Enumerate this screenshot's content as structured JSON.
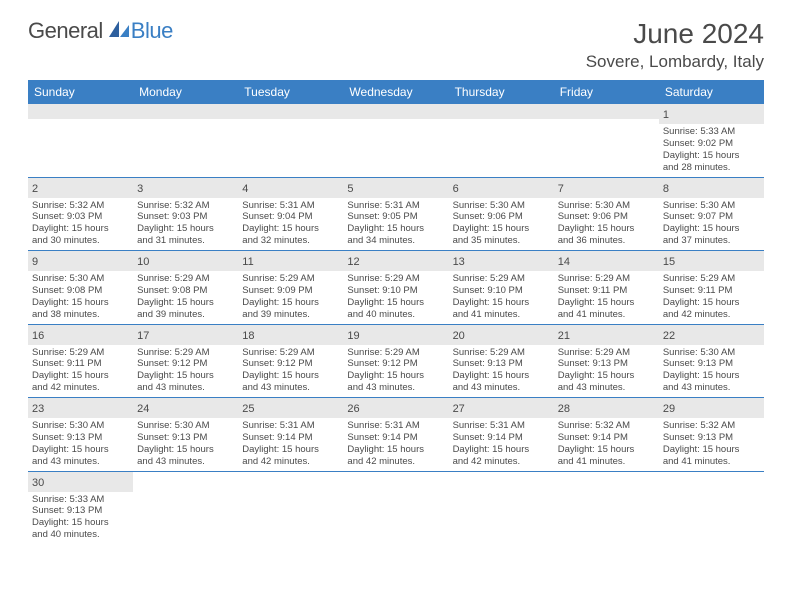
{
  "logo": {
    "text1": "General",
    "text2": "Blue"
  },
  "title": "June 2024",
  "location": "Sovere, Lombardy, Italy",
  "colors": {
    "accent": "#3a7fc4",
    "text": "#4a4a4a",
    "grayBand": "#e8e8e8",
    "background": "#ffffff"
  },
  "weekdays": [
    "Sunday",
    "Monday",
    "Tuesday",
    "Wednesday",
    "Thursday",
    "Friday",
    "Saturday"
  ],
  "weeks": [
    [
      null,
      null,
      null,
      null,
      null,
      null,
      {
        "n": "1",
        "sr": "Sunrise: 5:33 AM",
        "ss": "Sunset: 9:02 PM",
        "d1": "Daylight: 15 hours",
        "d2": "and 28 minutes."
      }
    ],
    [
      {
        "n": "2",
        "sr": "Sunrise: 5:32 AM",
        "ss": "Sunset: 9:03 PM",
        "d1": "Daylight: 15 hours",
        "d2": "and 30 minutes."
      },
      {
        "n": "3",
        "sr": "Sunrise: 5:32 AM",
        "ss": "Sunset: 9:03 PM",
        "d1": "Daylight: 15 hours",
        "d2": "and 31 minutes."
      },
      {
        "n": "4",
        "sr": "Sunrise: 5:31 AM",
        "ss": "Sunset: 9:04 PM",
        "d1": "Daylight: 15 hours",
        "d2": "and 32 minutes."
      },
      {
        "n": "5",
        "sr": "Sunrise: 5:31 AM",
        "ss": "Sunset: 9:05 PM",
        "d1": "Daylight: 15 hours",
        "d2": "and 34 minutes."
      },
      {
        "n": "6",
        "sr": "Sunrise: 5:30 AM",
        "ss": "Sunset: 9:06 PM",
        "d1": "Daylight: 15 hours",
        "d2": "and 35 minutes."
      },
      {
        "n": "7",
        "sr": "Sunrise: 5:30 AM",
        "ss": "Sunset: 9:06 PM",
        "d1": "Daylight: 15 hours",
        "d2": "and 36 minutes."
      },
      {
        "n": "8",
        "sr": "Sunrise: 5:30 AM",
        "ss": "Sunset: 9:07 PM",
        "d1": "Daylight: 15 hours",
        "d2": "and 37 minutes."
      }
    ],
    [
      {
        "n": "9",
        "sr": "Sunrise: 5:30 AM",
        "ss": "Sunset: 9:08 PM",
        "d1": "Daylight: 15 hours",
        "d2": "and 38 minutes."
      },
      {
        "n": "10",
        "sr": "Sunrise: 5:29 AM",
        "ss": "Sunset: 9:08 PM",
        "d1": "Daylight: 15 hours",
        "d2": "and 39 minutes."
      },
      {
        "n": "11",
        "sr": "Sunrise: 5:29 AM",
        "ss": "Sunset: 9:09 PM",
        "d1": "Daylight: 15 hours",
        "d2": "and 39 minutes."
      },
      {
        "n": "12",
        "sr": "Sunrise: 5:29 AM",
        "ss": "Sunset: 9:10 PM",
        "d1": "Daylight: 15 hours",
        "d2": "and 40 minutes."
      },
      {
        "n": "13",
        "sr": "Sunrise: 5:29 AM",
        "ss": "Sunset: 9:10 PM",
        "d1": "Daylight: 15 hours",
        "d2": "and 41 minutes."
      },
      {
        "n": "14",
        "sr": "Sunrise: 5:29 AM",
        "ss": "Sunset: 9:11 PM",
        "d1": "Daylight: 15 hours",
        "d2": "and 41 minutes."
      },
      {
        "n": "15",
        "sr": "Sunrise: 5:29 AM",
        "ss": "Sunset: 9:11 PM",
        "d1": "Daylight: 15 hours",
        "d2": "and 42 minutes."
      }
    ],
    [
      {
        "n": "16",
        "sr": "Sunrise: 5:29 AM",
        "ss": "Sunset: 9:11 PM",
        "d1": "Daylight: 15 hours",
        "d2": "and 42 minutes."
      },
      {
        "n": "17",
        "sr": "Sunrise: 5:29 AM",
        "ss": "Sunset: 9:12 PM",
        "d1": "Daylight: 15 hours",
        "d2": "and 43 minutes."
      },
      {
        "n": "18",
        "sr": "Sunrise: 5:29 AM",
        "ss": "Sunset: 9:12 PM",
        "d1": "Daylight: 15 hours",
        "d2": "and 43 minutes."
      },
      {
        "n": "19",
        "sr": "Sunrise: 5:29 AM",
        "ss": "Sunset: 9:12 PM",
        "d1": "Daylight: 15 hours",
        "d2": "and 43 minutes."
      },
      {
        "n": "20",
        "sr": "Sunrise: 5:29 AM",
        "ss": "Sunset: 9:13 PM",
        "d1": "Daylight: 15 hours",
        "d2": "and 43 minutes."
      },
      {
        "n": "21",
        "sr": "Sunrise: 5:29 AM",
        "ss": "Sunset: 9:13 PM",
        "d1": "Daylight: 15 hours",
        "d2": "and 43 minutes."
      },
      {
        "n": "22",
        "sr": "Sunrise: 5:30 AM",
        "ss": "Sunset: 9:13 PM",
        "d1": "Daylight: 15 hours",
        "d2": "and 43 minutes."
      }
    ],
    [
      {
        "n": "23",
        "sr": "Sunrise: 5:30 AM",
        "ss": "Sunset: 9:13 PM",
        "d1": "Daylight: 15 hours",
        "d2": "and 43 minutes."
      },
      {
        "n": "24",
        "sr": "Sunrise: 5:30 AM",
        "ss": "Sunset: 9:13 PM",
        "d1": "Daylight: 15 hours",
        "d2": "and 43 minutes."
      },
      {
        "n": "25",
        "sr": "Sunrise: 5:31 AM",
        "ss": "Sunset: 9:14 PM",
        "d1": "Daylight: 15 hours",
        "d2": "and 42 minutes."
      },
      {
        "n": "26",
        "sr": "Sunrise: 5:31 AM",
        "ss": "Sunset: 9:14 PM",
        "d1": "Daylight: 15 hours",
        "d2": "and 42 minutes."
      },
      {
        "n": "27",
        "sr": "Sunrise: 5:31 AM",
        "ss": "Sunset: 9:14 PM",
        "d1": "Daylight: 15 hours",
        "d2": "and 42 minutes."
      },
      {
        "n": "28",
        "sr": "Sunrise: 5:32 AM",
        "ss": "Sunset: 9:14 PM",
        "d1": "Daylight: 15 hours",
        "d2": "and 41 minutes."
      },
      {
        "n": "29",
        "sr": "Sunrise: 5:32 AM",
        "ss": "Sunset: 9:13 PM",
        "d1": "Daylight: 15 hours",
        "d2": "and 41 minutes."
      }
    ],
    [
      {
        "n": "30",
        "sr": "Sunrise: 5:33 AM",
        "ss": "Sunset: 9:13 PM",
        "d1": "Daylight: 15 hours",
        "d2": "and 40 minutes."
      },
      null,
      null,
      null,
      null,
      null,
      null
    ]
  ]
}
